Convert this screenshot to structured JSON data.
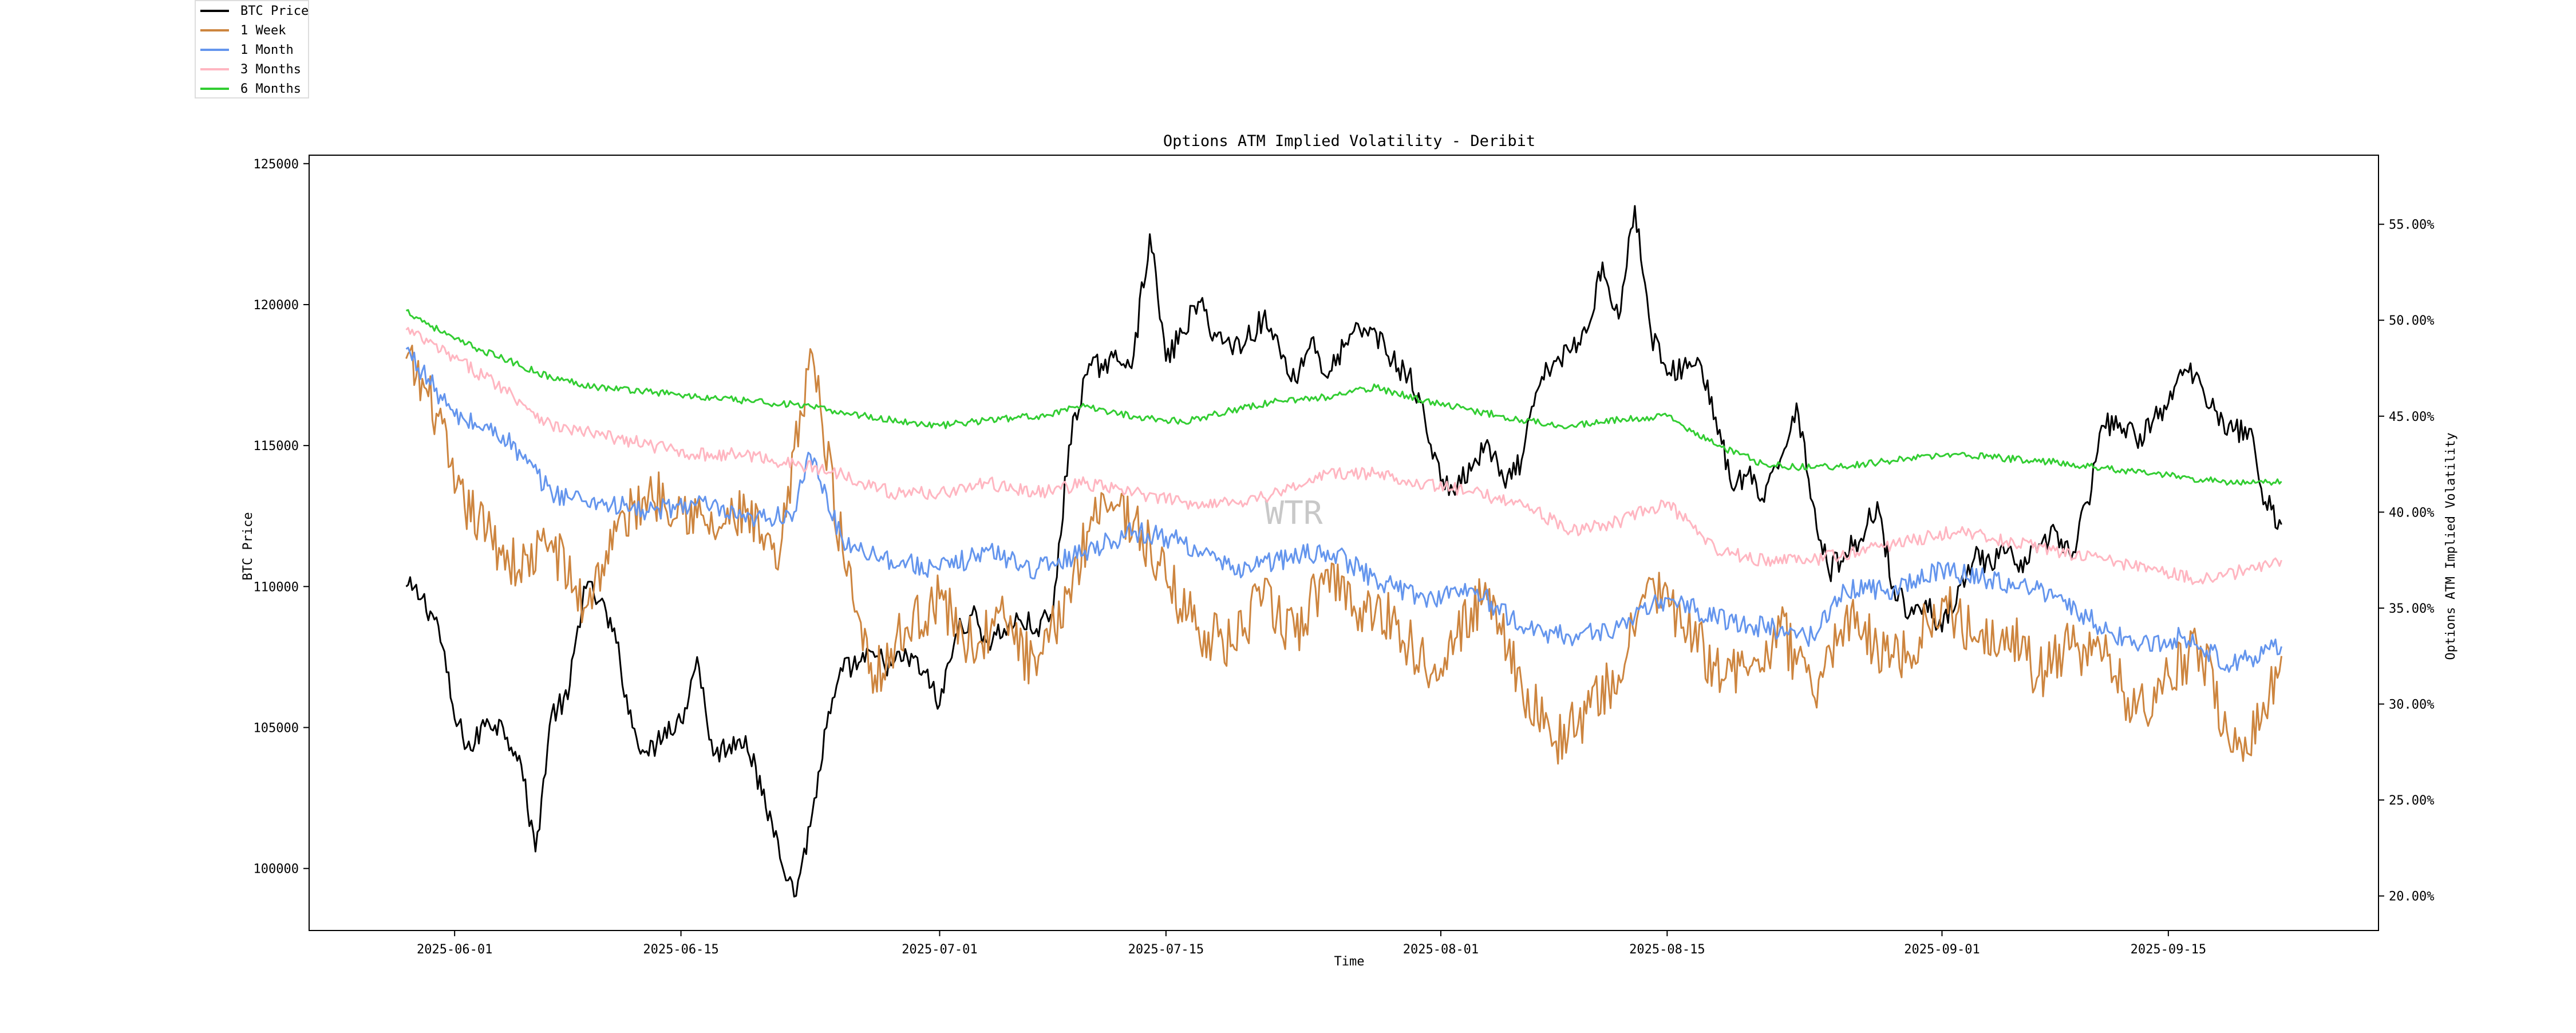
{
  "chart_data": {
    "type": "line",
    "title": "Options ATM Implied Volatility - Deribit",
    "xlabel": "Time",
    "ylabel_left": "BTC Price",
    "ylabel_right": "Options ATM Implied Volatility",
    "watermark": "WTR",
    "x_range": [
      "2025-05-23",
      "2025-09-28"
    ],
    "y_left_range": [
      97800,
      125300
    ],
    "y_right_range": [
      18.2,
      58.6
    ],
    "x_ticks": [
      "2025-06-01",
      "2025-06-15",
      "2025-07-01",
      "2025-07-15",
      "2025-08-01",
      "2025-08-15",
      "2025-09-01",
      "2025-09-15"
    ],
    "y_left_ticks": [
      100000,
      105000,
      110000,
      115000,
      120000,
      125000
    ],
    "y_right_ticks": [
      "20.00%",
      "25.00%",
      "30.00%",
      "35.00%",
      "40.00%",
      "45.00%",
      "50.00%",
      "55.00%"
    ],
    "grid": false,
    "legend_position": "top-left",
    "series": [
      {
        "name": "BTC Price",
        "axis": "left",
        "color": "#000000",
        "x": [
          "2025-05-29",
          "2025-05-30",
          "2025-05-31",
          "2025-06-01",
          "2025-06-02",
          "2025-06-03",
          "2025-06-04",
          "2025-06-05",
          "2025-06-06",
          "2025-06-07",
          "2025-06-08",
          "2025-06-09",
          "2025-06-10",
          "2025-06-11",
          "2025-06-12",
          "2025-06-13",
          "2025-06-14",
          "2025-06-15",
          "2025-06-16",
          "2025-06-17",
          "2025-06-18",
          "2025-06-19",
          "2025-06-20",
          "2025-06-21",
          "2025-06-22",
          "2025-06-23",
          "2025-06-24",
          "2025-06-25",
          "2025-06-26",
          "2025-06-27",
          "2025-06-28",
          "2025-06-29",
          "2025-06-30",
          "2025-07-01",
          "2025-07-02",
          "2025-07-03",
          "2025-07-04",
          "2025-07-05",
          "2025-07-06",
          "2025-07-07",
          "2025-07-08",
          "2025-07-09",
          "2025-07-10",
          "2025-07-11",
          "2025-07-12",
          "2025-07-13",
          "2025-07-14",
          "2025-07-15",
          "2025-07-16",
          "2025-07-17",
          "2025-07-18",
          "2025-07-19",
          "2025-07-20",
          "2025-07-21",
          "2025-07-22",
          "2025-07-23",
          "2025-07-24",
          "2025-07-25",
          "2025-07-26",
          "2025-07-27",
          "2025-07-28",
          "2025-07-29",
          "2025-07-30",
          "2025-07-31",
          "2025-08-01",
          "2025-08-02",
          "2025-08-03",
          "2025-08-04",
          "2025-08-05",
          "2025-08-06",
          "2025-08-07",
          "2025-08-08",
          "2025-08-09",
          "2025-08-10",
          "2025-08-11",
          "2025-08-12",
          "2025-08-13",
          "2025-08-14",
          "2025-08-15",
          "2025-08-16",
          "2025-08-17",
          "2025-08-18",
          "2025-08-19",
          "2025-08-20",
          "2025-08-21",
          "2025-08-22",
          "2025-08-23",
          "2025-08-24",
          "2025-08-25",
          "2025-08-26",
          "2025-08-27",
          "2025-08-28",
          "2025-08-29",
          "2025-08-30",
          "2025-08-31",
          "2025-09-01",
          "2025-09-02",
          "2025-09-03",
          "2025-09-04",
          "2025-09-05",
          "2025-09-06",
          "2025-09-07",
          "2025-09-08",
          "2025-09-09",
          "2025-09-10",
          "2025-09-11",
          "2025-09-12",
          "2025-09-13",
          "2025-09-14",
          "2025-09-15",
          "2025-09-16",
          "2025-09-17",
          "2025-09-18",
          "2025-09-19",
          "2025-09-20",
          "2025-09-21",
          "2025-09-22"
        ],
        "values": [
          110000,
          109600,
          108600,
          105300,
          104200,
          105300,
          105000,
          104000,
          100600,
          105500,
          106000,
          110000,
          109500,
          108000,
          105000,
          104000,
          105000,
          105200,
          107500,
          104000,
          104400,
          104700,
          102600,
          101000,
          99000,
          101500,
          105000,
          107000,
          107300,
          107500,
          107200,
          107500,
          107000,
          105800,
          108300,
          109000,
          108000,
          108500,
          108800,
          108500,
          109000,
          115000,
          117500,
          117900,
          118000,
          118200,
          122500,
          118000,
          119000,
          120100,
          119000,
          118500,
          118800,
          119500,
          118500,
          117300,
          118800,
          117400,
          118500,
          119100,
          119000,
          118000,
          117500,
          116000,
          113700,
          113500,
          114300,
          115000,
          113500,
          114500,
          117000,
          118000,
          118300,
          119000,
          121500,
          119500,
          123500,
          119000,
          117500,
          117800,
          118000,
          116000,
          113500,
          114000,
          113000,
          114500,
          116500,
          113000,
          110500,
          111200,
          111700,
          113000,
          110000,
          109000,
          109500,
          108400,
          110000,
          111000,
          110800,
          111200,
          110500,
          111500,
          112000,
          111000,
          113000,
          115700,
          115800,
          115200,
          115800,
          116500,
          117700,
          117200,
          116200,
          115500,
          115600,
          113000,
          112200
        ]
      },
      {
        "name": "1 Week",
        "axis": "right",
        "color": "#cd853f",
        "x": [
          "2025-05-29",
          "2025-05-31",
          "2025-06-01",
          "2025-06-03",
          "2025-06-05",
          "2025-06-07",
          "2025-06-09",
          "2025-06-11",
          "2025-06-13",
          "2025-06-15",
          "2025-06-17",
          "2025-06-19",
          "2025-06-21",
          "2025-06-23",
          "2025-06-25",
          "2025-06-27",
          "2025-06-29",
          "2025-07-01",
          "2025-07-03",
          "2025-07-05",
          "2025-07-07",
          "2025-07-09",
          "2025-07-11",
          "2025-07-13",
          "2025-07-15",
          "2025-07-17",
          "2025-07-19",
          "2025-07-21",
          "2025-07-23",
          "2025-07-25",
          "2025-07-27",
          "2025-07-29",
          "2025-07-31",
          "2025-08-02",
          "2025-08-04",
          "2025-08-06",
          "2025-08-08",
          "2025-08-10",
          "2025-08-12",
          "2025-08-14",
          "2025-08-16",
          "2025-08-18",
          "2025-08-20",
          "2025-08-22",
          "2025-08-24",
          "2025-08-26",
          "2025-08-28",
          "2025-08-30",
          "2025-09-01",
          "2025-09-03",
          "2025-09-05",
          "2025-09-07",
          "2025-09-09",
          "2025-09-11",
          "2025-09-13",
          "2025-09-15",
          "2025-09-17",
          "2025-09-19",
          "2025-09-21",
          "2025-09-22"
        ],
        "values": [
          48.0,
          45.0,
          41.0,
          39.0,
          37.0,
          38.5,
          35.0,
          39.0,
          41.0,
          40.5,
          39.0,
          40.0,
          37.0,
          48.5,
          38.0,
          31.5,
          34.0,
          35.5,
          33.0,
          34.5,
          31.5,
          36.0,
          41.0,
          39.5,
          36.5,
          34.0,
          33.0,
          35.5,
          33.5,
          37.0,
          35.0,
          34.5,
          32.0,
          33.5,
          36.0,
          31.0,
          28.0,
          29.5,
          31.5,
          36.5,
          34.0,
          32.0,
          31.5,
          34.0,
          30.5,
          34.5,
          33.0,
          32.5,
          35.5,
          33.5,
          34.0,
          31.5,
          33.0,
          32.5,
          29.5,
          31.5,
          33.0,
          27.5,
          29.5,
          32.5
        ]
      },
      {
        "name": "1 Month",
        "axis": "right",
        "color": "#6495ed",
        "x": [
          "2025-05-29",
          "2025-06-01",
          "2025-06-04",
          "2025-06-07",
          "2025-06-10",
          "2025-06-13",
          "2025-06-16",
          "2025-06-19",
          "2025-06-22",
          "2025-06-23",
          "2025-06-25",
          "2025-06-28",
          "2025-07-01",
          "2025-07-04",
          "2025-07-07",
          "2025-07-10",
          "2025-07-13",
          "2025-07-16",
          "2025-07-19",
          "2025-07-22",
          "2025-07-25",
          "2025-07-28",
          "2025-07-31",
          "2025-08-03",
          "2025-08-06",
          "2025-08-09",
          "2025-08-12",
          "2025-08-15",
          "2025-08-18",
          "2025-08-21",
          "2025-08-24",
          "2025-08-26",
          "2025-08-29",
          "2025-09-01",
          "2025-09-04",
          "2025-09-07",
          "2025-09-10",
          "2025-09-13",
          "2025-09-16",
          "2025-09-19",
          "2025-09-22"
        ],
        "values": [
          48.5,
          45.0,
          44.0,
          41.0,
          40.5,
          40.0,
          40.5,
          39.5,
          40.0,
          43.0,
          38.5,
          37.5,
          37.0,
          38.0,
          37.0,
          38.0,
          39.0,
          38.5,
          37.0,
          37.5,
          38.0,
          36.5,
          35.5,
          36.0,
          34.0,
          33.5,
          34.0,
          35.5,
          34.5,
          34.0,
          33.5,
          36.0,
          36.0,
          37.0,
          36.5,
          36.0,
          34.5,
          33.0,
          33.5,
          32.0,
          33.0
        ]
      },
      {
        "name": "3 Months",
        "axis": "right",
        "color": "#ffb6c1",
        "x": [
          "2025-05-29",
          "2025-06-01",
          "2025-06-04",
          "2025-06-07",
          "2025-06-10",
          "2025-06-13",
          "2025-06-16",
          "2025-06-19",
          "2025-06-22",
          "2025-06-25",
          "2025-06-28",
          "2025-07-01",
          "2025-07-04",
          "2025-07-07",
          "2025-07-10",
          "2025-07-13",
          "2025-07-16",
          "2025-07-19",
          "2025-07-22",
          "2025-07-25",
          "2025-07-28",
          "2025-07-31",
          "2025-08-03",
          "2025-08-06",
          "2025-08-09",
          "2025-08-12",
          "2025-08-15",
          "2025-08-18",
          "2025-08-21",
          "2025-08-24",
          "2025-08-27",
          "2025-08-30",
          "2025-09-02",
          "2025-09-05",
          "2025-09-08",
          "2025-09-11",
          "2025-09-14",
          "2025-09-17",
          "2025-09-20",
          "2025-09-22"
        ],
        "values": [
          49.5,
          48.0,
          46.5,
          44.5,
          44.0,
          43.5,
          43.0,
          43.0,
          42.5,
          42.0,
          41.0,
          41.0,
          41.5,
          41.0,
          41.5,
          41.0,
          40.5,
          40.5,
          41.0,
          42.0,
          42.0,
          41.5,
          41.0,
          40.5,
          39.0,
          39.5,
          40.5,
          38.0,
          37.5,
          37.5,
          38.0,
          38.5,
          39.0,
          38.5,
          38.0,
          37.5,
          37.0,
          36.5,
          37.0,
          37.5
        ]
      },
      {
        "name": "6 Months",
        "axis": "right",
        "color": "#32cd32",
        "x": [
          "2025-05-29",
          "2025-06-01",
          "2025-06-04",
          "2025-06-07",
          "2025-06-10",
          "2025-06-13",
          "2025-06-16",
          "2025-06-19",
          "2025-06-22",
          "2025-06-25",
          "2025-06-28",
          "2025-07-01",
          "2025-07-04",
          "2025-07-07",
          "2025-07-10",
          "2025-07-13",
          "2025-07-16",
          "2025-07-19",
          "2025-07-22",
          "2025-07-25",
          "2025-07-28",
          "2025-07-31",
          "2025-08-03",
          "2025-08-06",
          "2025-08-09",
          "2025-08-12",
          "2025-08-15",
          "2025-08-18",
          "2025-08-21",
          "2025-08-24",
          "2025-08-27",
          "2025-08-30",
          "2025-09-02",
          "2025-09-05",
          "2025-09-08",
          "2025-09-11",
          "2025-09-14",
          "2025-09-17",
          "2025-09-20",
          "2025-09-22"
        ],
        "values": [
          50.5,
          49.0,
          48.0,
          47.0,
          46.5,
          46.3,
          46.0,
          45.8,
          45.6,
          45.2,
          44.8,
          44.5,
          44.8,
          45.0,
          45.5,
          45.0,
          44.7,
          45.3,
          45.8,
          46.0,
          46.5,
          45.8,
          45.3,
          44.8,
          44.5,
          44.8,
          45.0,
          43.5,
          42.5,
          42.3,
          42.5,
          42.8,
          43.0,
          42.8,
          42.6,
          42.3,
          42.0,
          41.7,
          41.5,
          41.6
        ]
      }
    ]
  }
}
